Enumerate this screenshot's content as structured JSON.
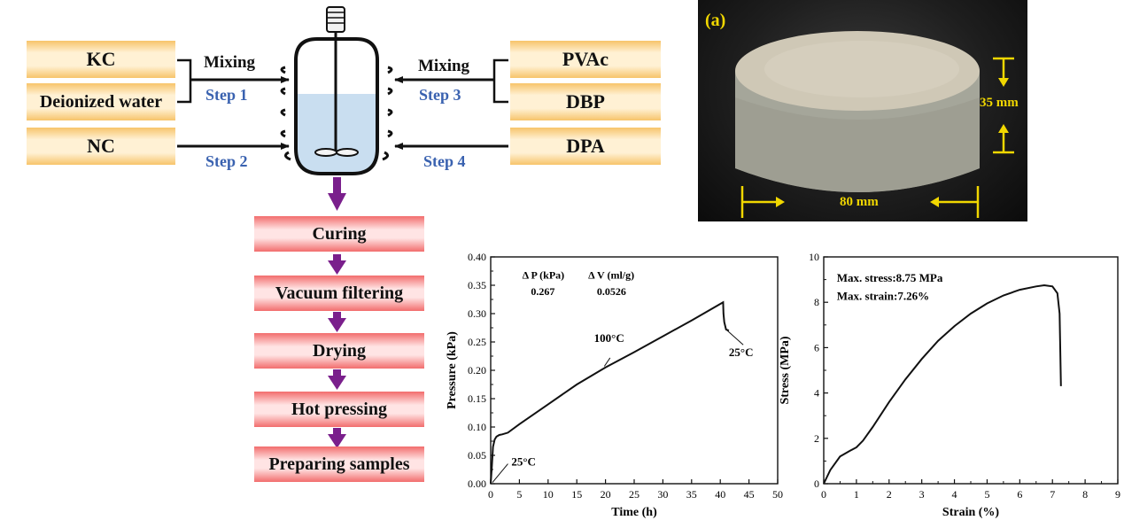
{
  "process": {
    "left_inputs": [
      "KC",
      "Deionized water",
      "NC"
    ],
    "right_inputs": [
      "PVAc",
      "DBP",
      "DPA"
    ],
    "mixing_left": "Mixing",
    "mixing_right": "Mixing",
    "step1": "Step 1",
    "step2": "Step 2",
    "step3": "Step 3",
    "step4": "Step 4",
    "stages": [
      "Curing",
      "Vacuum filtering",
      "Drying",
      "Hot pressing",
      "Preparing samples"
    ],
    "colors": {
      "input_box": "#f7c46a",
      "stage_box": "#f26d6d",
      "arrow_down": "#7a1f8c",
      "step_text": "#3a62b0",
      "liquid": "#c9def0"
    }
  },
  "photo": {
    "panel_label": "(a)",
    "height_label": "35 mm",
    "width_label": "80 mm",
    "annotation_color": "#f1d700"
  },
  "pressure_chart": {
    "chart_data": {
      "type": "line",
      "xlabel": "Time (h)",
      "ylabel": "Pressure (kPa)",
      "xlim": [
        0,
        50
      ],
      "ylim": [
        0,
        0.4
      ],
      "xticks": [
        0,
        5,
        10,
        15,
        20,
        25,
        30,
        35,
        40,
        45,
        50
      ],
      "yticks": [
        0.0,
        0.05,
        0.1,
        0.15,
        0.2,
        0.25,
        0.3,
        0.35,
        0.4
      ],
      "x": [
        0,
        0.2,
        0.4,
        0.7,
        1.0,
        1.5,
        2.0,
        3.0,
        5,
        10,
        15,
        20,
        25,
        30,
        35,
        40.5,
        40.55,
        40.7,
        41.0,
        41.5
      ],
      "y": [
        0,
        0.03,
        0.065,
        0.078,
        0.083,
        0.086,
        0.087,
        0.09,
        0.105,
        0.14,
        0.175,
        0.205,
        0.232,
        0.26,
        0.288,
        0.32,
        0.3,
        0.285,
        0.272,
        0.27
      ],
      "annotations": [
        {
          "text": "25°C",
          "x": 0,
          "y": 0
        },
        {
          "text": "100°C",
          "x": 20,
          "y": 0.205
        },
        {
          "text": "25°C",
          "x": 41,
          "y": 0.272
        }
      ],
      "inset_table": {
        "headers": [
          "Δ P (kPa)",
          "Δ V (ml/g)"
        ],
        "values": [
          "0.267",
          "0.0526"
        ]
      }
    }
  },
  "stress_chart": {
    "chart_data": {
      "type": "line",
      "xlabel": "Strain (%)",
      "ylabel": "Stress (MPa)",
      "xlim": [
        0,
        9
      ],
      "ylim": [
        0,
        10
      ],
      "xticks": [
        0,
        1,
        2,
        3,
        4,
        5,
        6,
        7,
        8,
        9
      ],
      "yticks": [
        0,
        2,
        4,
        6,
        8,
        10
      ],
      "x": [
        0,
        0.2,
        0.5,
        0.8,
        1.0,
        1.2,
        1.5,
        2.0,
        2.5,
        3.0,
        3.5,
        4.0,
        4.5,
        5.0,
        5.5,
        6.0,
        6.5,
        6.75,
        7.0,
        7.15,
        7.22,
        7.26
      ],
      "y": [
        0,
        0.6,
        1.2,
        1.45,
        1.6,
        1.9,
        2.5,
        3.6,
        4.6,
        5.5,
        6.3,
        6.95,
        7.5,
        7.95,
        8.3,
        8.55,
        8.7,
        8.75,
        8.7,
        8.4,
        7.5,
        4.3
      ],
      "annotations": [
        "Max. stress:8.75 MPa",
        "Max. strain:7.26%"
      ]
    }
  }
}
